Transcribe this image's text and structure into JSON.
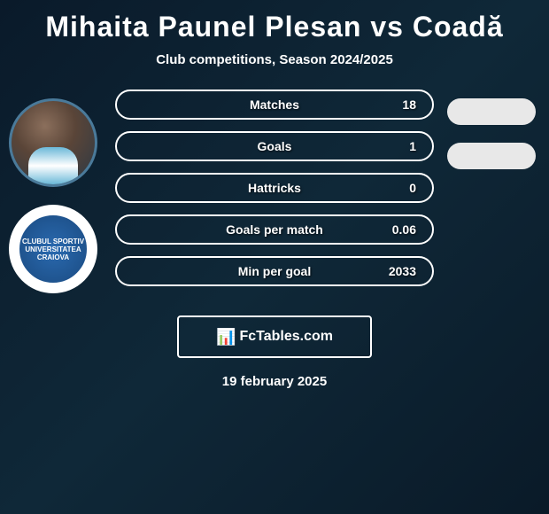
{
  "header": {
    "title": "Mihaita Paunel Plesan vs Coadă",
    "subtitle": "Club competitions, Season 2024/2025"
  },
  "player": {
    "avatar_border_color": "#4a7a9a"
  },
  "club": {
    "logo_text": "CLUBUL SPORTIV UNIVERSITATEA CRAIOVA",
    "logo_bg": "#2a6ab0"
  },
  "stats": [
    {
      "label": "Matches",
      "value": "18"
    },
    {
      "label": "Goals",
      "value": "1"
    },
    {
      "label": "Hattricks",
      "value": "0"
    },
    {
      "label": "Goals per match",
      "value": "0.06"
    },
    {
      "label": "Min per goal",
      "value": "2033"
    }
  ],
  "right_pills": {
    "count": 2,
    "bg_color": "#e8e8e8"
  },
  "footer": {
    "logo_brand": "FcTables.com",
    "date": "19 february 2025"
  },
  "styling": {
    "pill_border_color": "#ffffff",
    "text_color": "#ffffff",
    "background_gradient": [
      "#0a1a2a",
      "#0f2838",
      "#0a1a28"
    ]
  }
}
